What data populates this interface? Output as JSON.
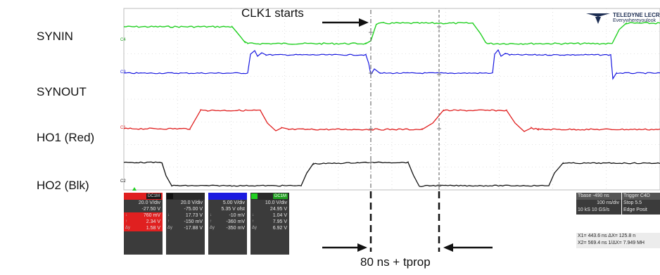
{
  "signal_labels": {
    "synin": "SYNIN",
    "synout": "SYNOUT",
    "ho1": "HO1 (Red)",
    "ho2": "HO2 (Blk)"
  },
  "annotations": {
    "clk1_starts": "CLK1 starts",
    "delay": "80 ns + tprop"
  },
  "logo": {
    "brand": "TELEDYNE LECROY",
    "tagline": "Everywhereyoulook"
  },
  "trace_colors": {
    "c1": "#e02020",
    "c2": "#111111",
    "c3": "#1a1ae0",
    "c4": "#22d022",
    "grid": "#c8c8c8",
    "cursor": "#555555"
  },
  "channels": [
    {
      "id": "c1",
      "tag": "DC1M",
      "color": "#e02020",
      "rows": [
        "20.0 V/div",
        "-27.50 V",
        "760 mV",
        "2.34 V",
        "1.58 V"
      ],
      "syms": [
        "",
        "",
        "↓",
        "↑",
        "Δy"
      ]
    },
    {
      "id": "c2",
      "tag": "",
      "color": "#111111",
      "rows": [
        "20.0 V/div",
        "-75.00 V",
        "17.73 V",
        "-150 mV",
        "-17.88 V"
      ],
      "syms": [
        "",
        "",
        "↓",
        "↑",
        "Δy"
      ]
    },
    {
      "id": "c3",
      "tag": "",
      "color": "#1a1ae0",
      "rows": [
        "5.00 V/div",
        "5.35 V ofst",
        "-10 mV",
        "-360 mV",
        "-350 mV"
      ],
      "syms": [
        "",
        "",
        "↓",
        "↑",
        "Δy"
      ]
    },
    {
      "id": "c4",
      "tag": "DC1M",
      "color": "#22d022",
      "rows": [
        "10.0 V/div",
        "24.95 V",
        "1.04 V",
        "7.95 V",
        "6.92 V"
      ],
      "syms": [
        "",
        "",
        "↓",
        "↑",
        "Δy"
      ]
    }
  ],
  "timebase": {
    "rows": [
      "Tbase   -490 ns",
      "100 ns/div",
      "10 kS   10 GS/s"
    ]
  },
  "trigger": {
    "rows": [
      "Trigger  C4D",
      "Stop     5.5",
      "Edge  Posit"
    ]
  },
  "measurements": {
    "rows": [
      "X1=  443.6 ns   ΔX=    125.8 n",
      "X2=  569.4 ns  1/ΔX=  7.949 MH"
    ]
  }
}
